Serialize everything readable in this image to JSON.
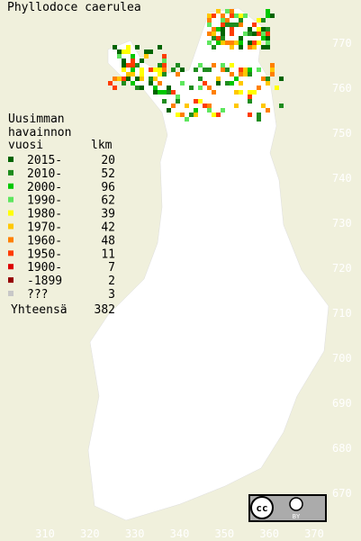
{
  "title": "Phyllodoce caerulea",
  "legend": {
    "header": [
      "Uusimman",
      "havainnon"
    ],
    "column_left": "vuosi",
    "column_right": "lkm",
    "entries": [
      {
        "label": "2015-",
        "count": "20",
        "color": "#006400"
      },
      {
        "label": "2010-",
        "count": "52",
        "color": "#1e8c1e"
      },
      {
        "label": "2000-",
        "count": "96",
        "color": "#00c800"
      },
      {
        "label": "1990-",
        "count": "62",
        "color": "#5ee65e"
      },
      {
        "label": "1980-",
        "count": "39",
        "color": "#ffff00"
      },
      {
        "label": "1970-",
        "count": "42",
        "color": "#ffc800"
      },
      {
        "label": "1960-",
        "count": "48",
        "color": "#ff8000"
      },
      {
        "label": "1950-",
        "count": "11",
        "color": "#ff3c00"
      },
      {
        "label": "1900-",
        "count": "7",
        "color": "#dc0000"
      },
      {
        "label": "-1899",
        "count": "2",
        "color": "#960000"
      },
      {
        "label": "???",
        "count": "3",
        "color": "#c8c8c8"
      }
    ],
    "total_label": "Yhteensä",
    "total": "382"
  },
  "grid": {
    "xticks": [
      310,
      320,
      330,
      340,
      350,
      360,
      370
    ],
    "yticks": [
      770,
      760,
      750,
      740,
      730,
      720,
      710,
      700,
      690,
      680,
      670
    ]
  },
  "license": {
    "icon": "cc",
    "label": "BY"
  }
}
